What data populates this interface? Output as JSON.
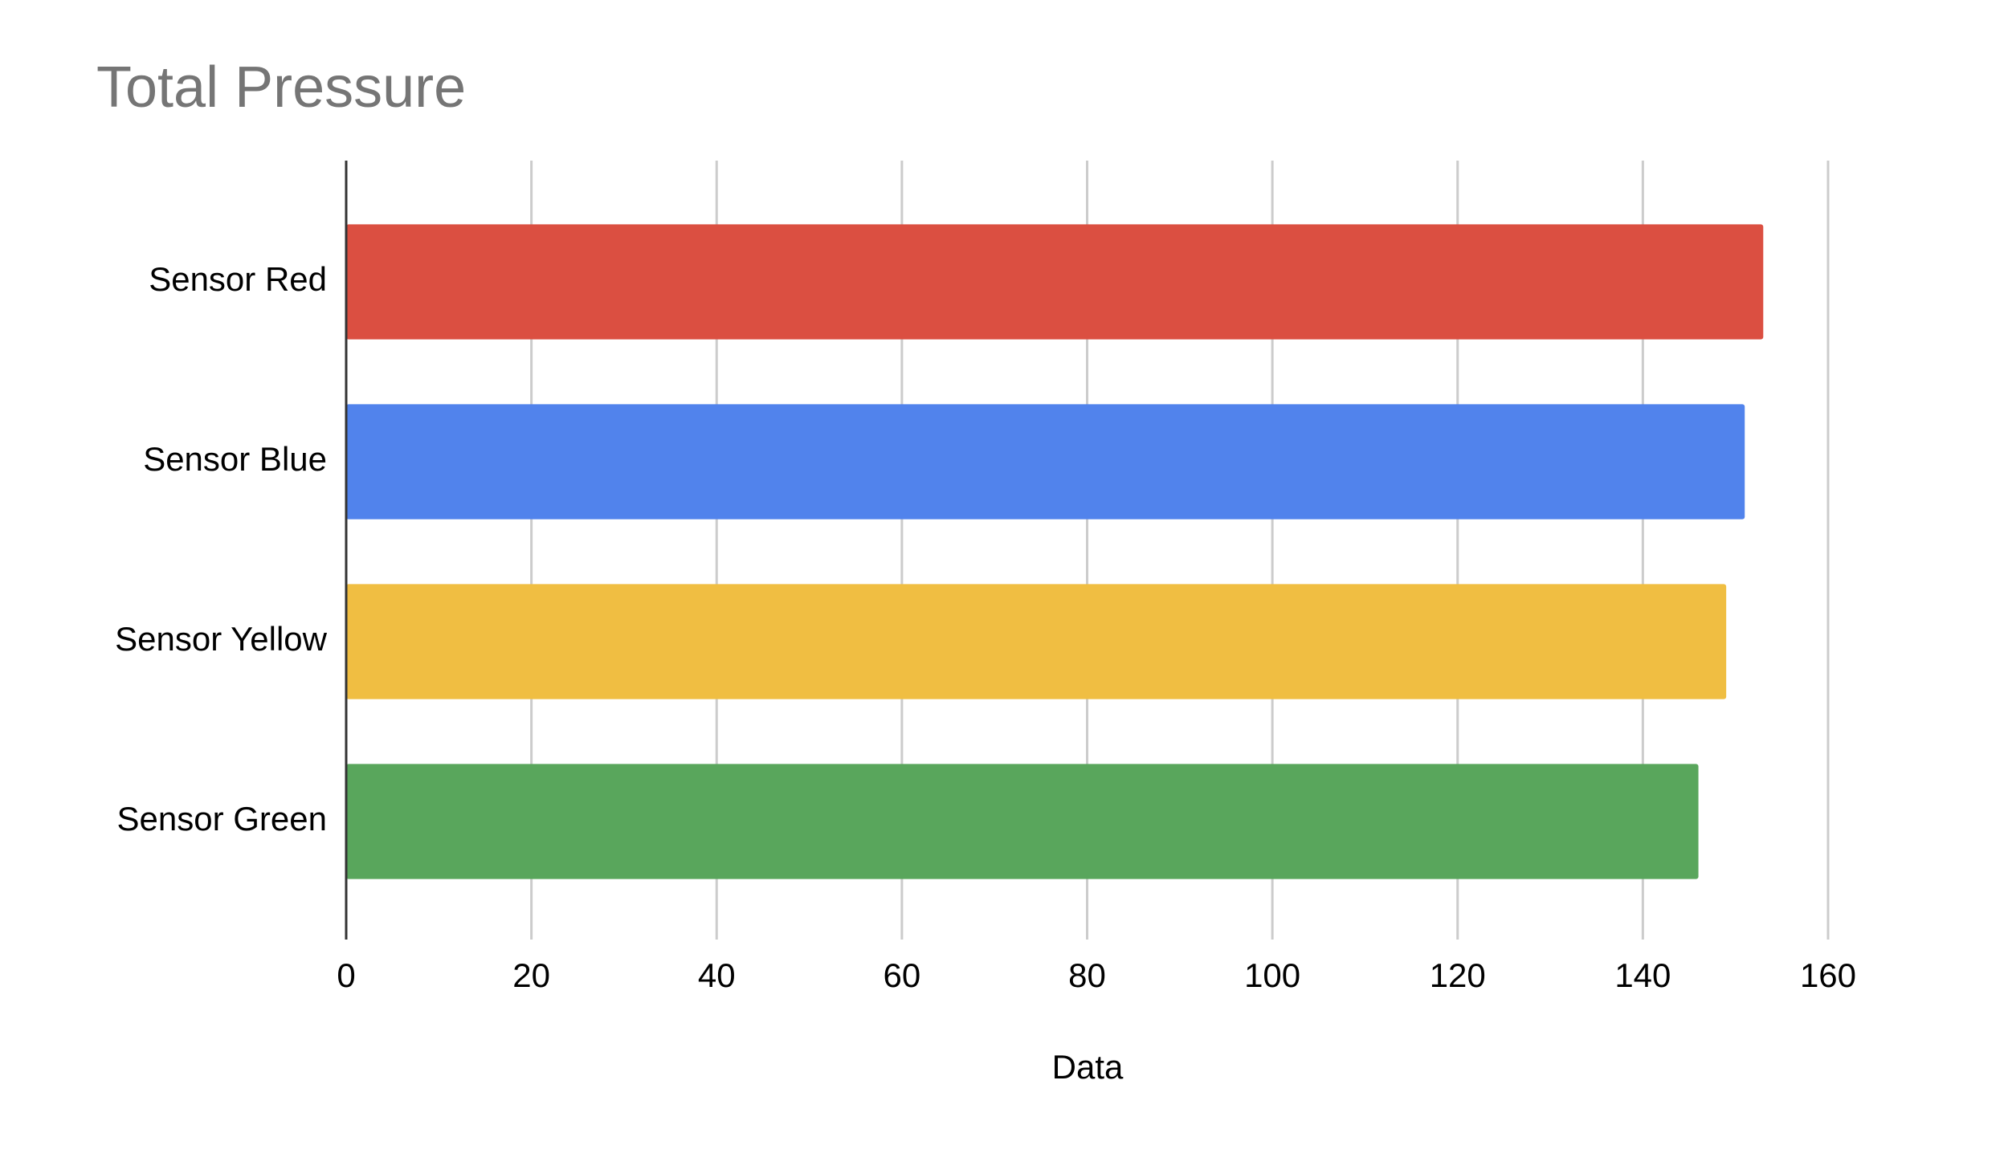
{
  "chart_data": {
    "type": "bar",
    "orientation": "horizontal",
    "title": "Total Pressure",
    "x_label": "Data",
    "categories": [
      "Sensor Red",
      "Sensor Blue",
      "Sensor Yellow",
      "Sensor Green"
    ],
    "values": [
      153,
      151,
      149,
      146
    ],
    "colors": [
      "#db4f41",
      "#5183ec",
      "#f0be42",
      "#59a65c"
    ],
    "xlim": [
      0,
      160
    ],
    "xticks": [
      0,
      20,
      40,
      60,
      80,
      100,
      120,
      140,
      160
    ],
    "grid": true
  }
}
